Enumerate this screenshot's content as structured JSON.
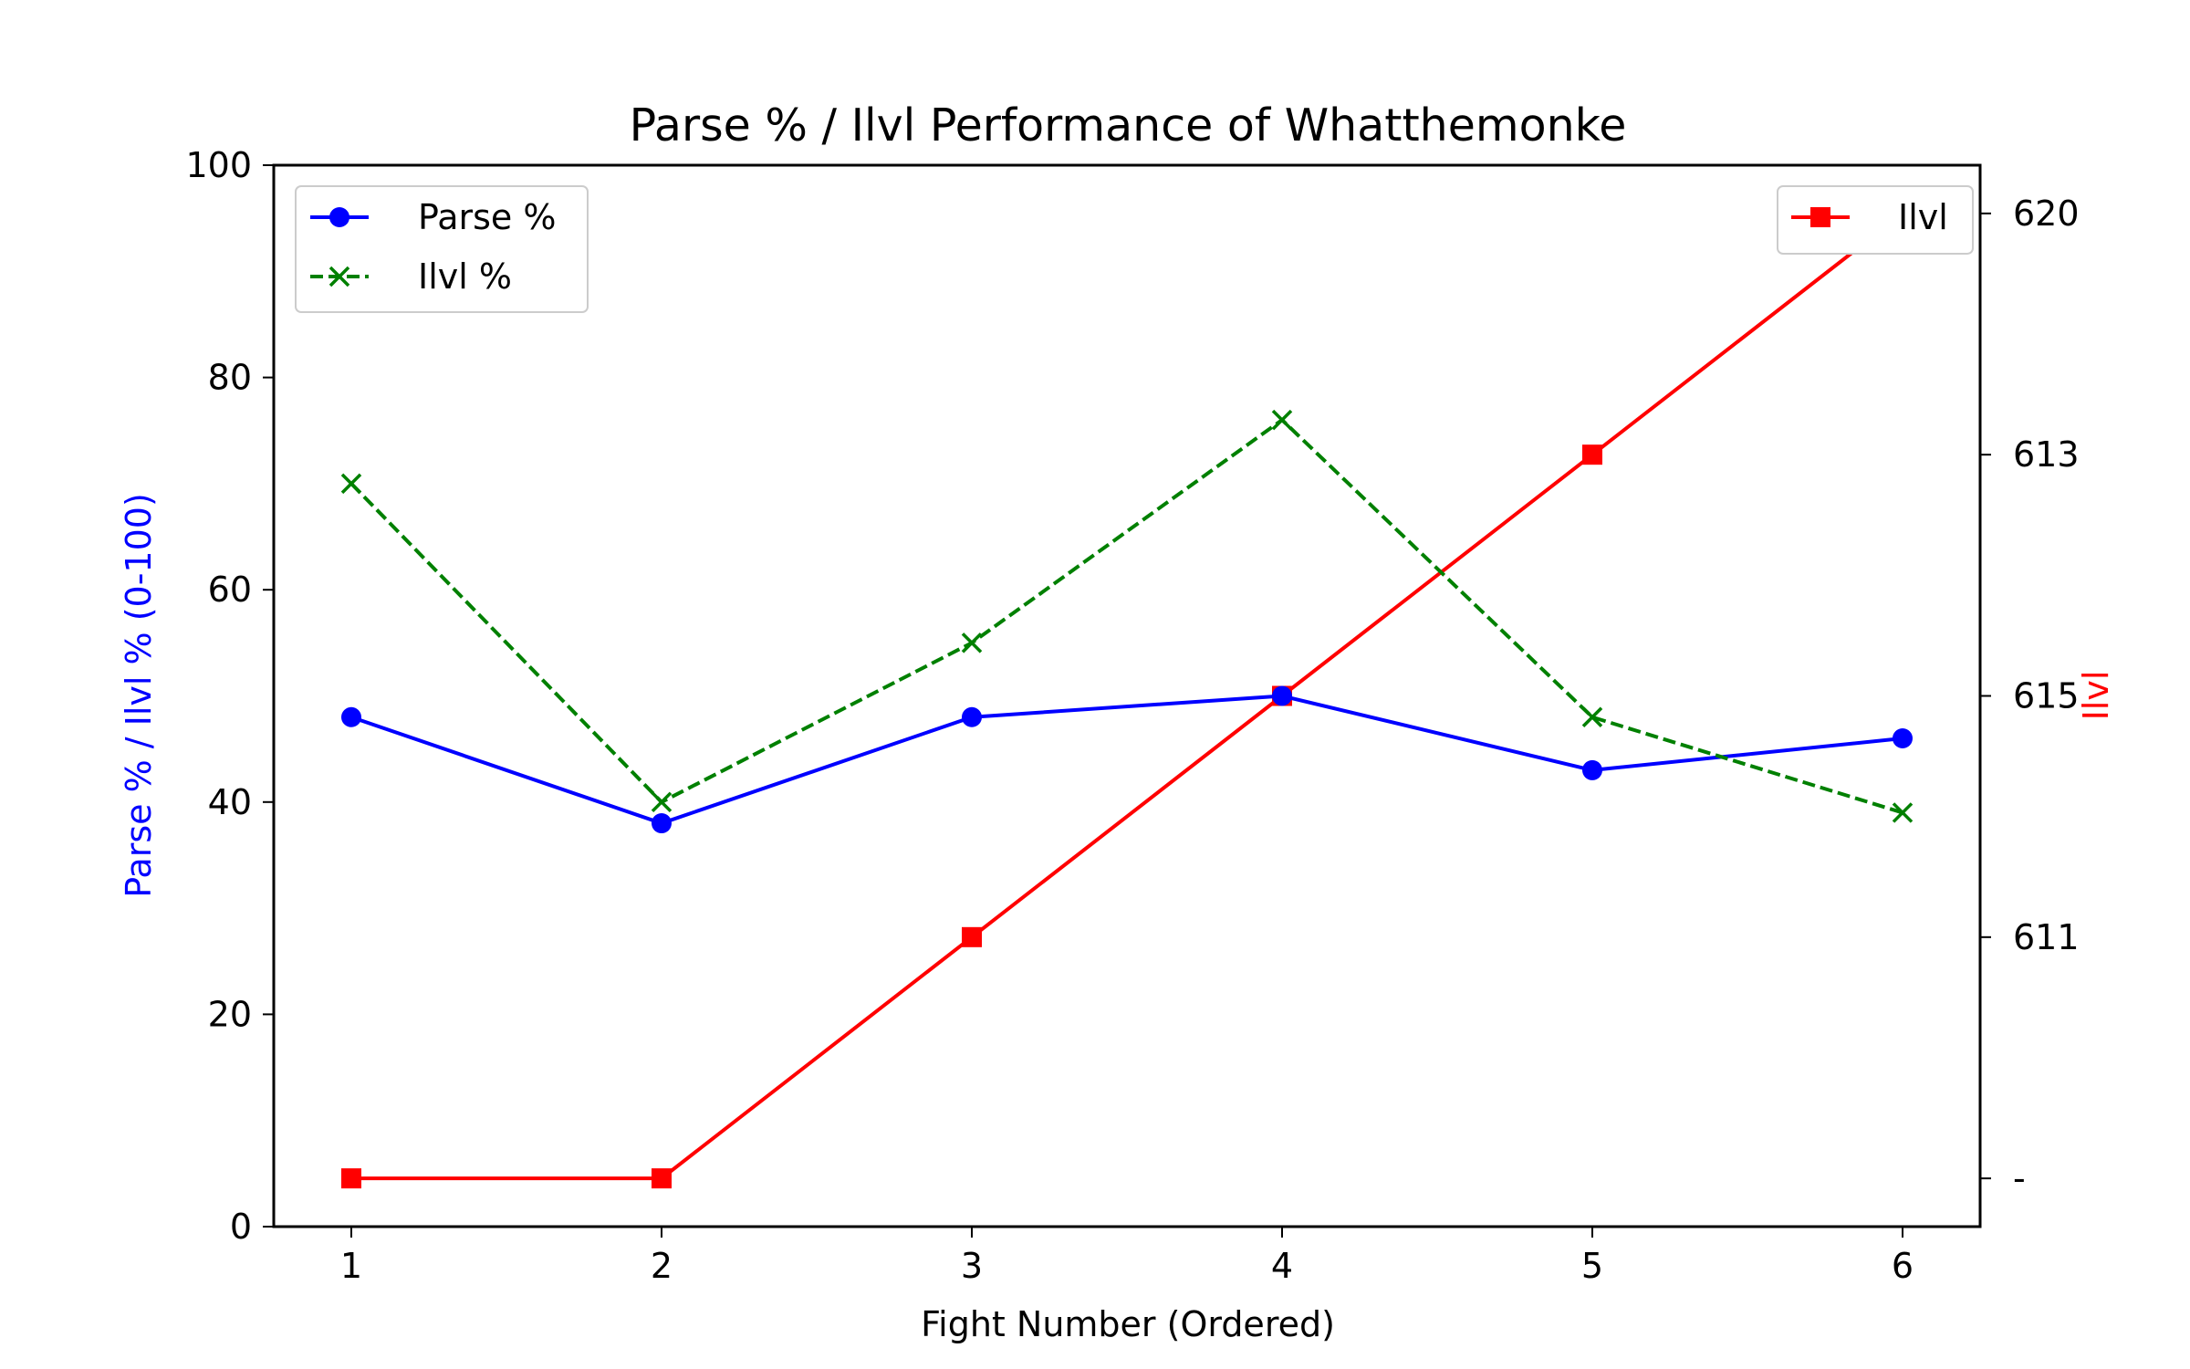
{
  "chart_data": {
    "type": "line",
    "title": "Parse % / Ilvl Performance of Whatthemonke",
    "xlabel": "Fight Number (Ordered)",
    "ylabel": "Parse % / Ilvl % (0-100)",
    "ylabel_right": "Ilvl",
    "categories": [
      "1",
      "2",
      "3",
      "4",
      "5",
      "6"
    ],
    "x": [
      1,
      2,
      3,
      4,
      5,
      6
    ],
    "xlim": [
      0.75,
      6.25
    ],
    "ylim": [
      0,
      100
    ],
    "y_ticks": [
      0,
      20,
      40,
      60,
      80,
      100
    ],
    "grid": false,
    "series": [
      {
        "name": "Parse %",
        "axis": "left",
        "color": "#0000ff",
        "marker": "circle",
        "line_style": "solid",
        "values": [
          48,
          38,
          48,
          50,
          43,
          46
        ]
      },
      {
        "name": "Ilvl %",
        "axis": "left",
        "color": "#008000",
        "marker": "x",
        "line_style": "dashed",
        "values": [
          70,
          40,
          55,
          76,
          48,
          39
        ]
      }
    ],
    "right_axis": {
      "label": "Ilvl",
      "color": "#ff0000",
      "tick_labels": [
        "-",
        "611",
        "615",
        "613",
        "620"
      ],
      "ylim": [
        -0.2,
        4.2
      ]
    },
    "right_series": [
      {
        "name": "Ilvl",
        "axis": "right",
        "color": "#ff0000",
        "marker": "square",
        "line_style": "solid",
        "values": [
          "-",
          "-",
          "611",
          "615",
          "613",
          "620"
        ]
      }
    ],
    "legend_left": {
      "placement": "top-left",
      "entries": [
        "Parse %",
        "Ilvl %"
      ]
    },
    "legend_right": {
      "placement": "top-right",
      "entries": [
        "Ilvl"
      ]
    }
  }
}
